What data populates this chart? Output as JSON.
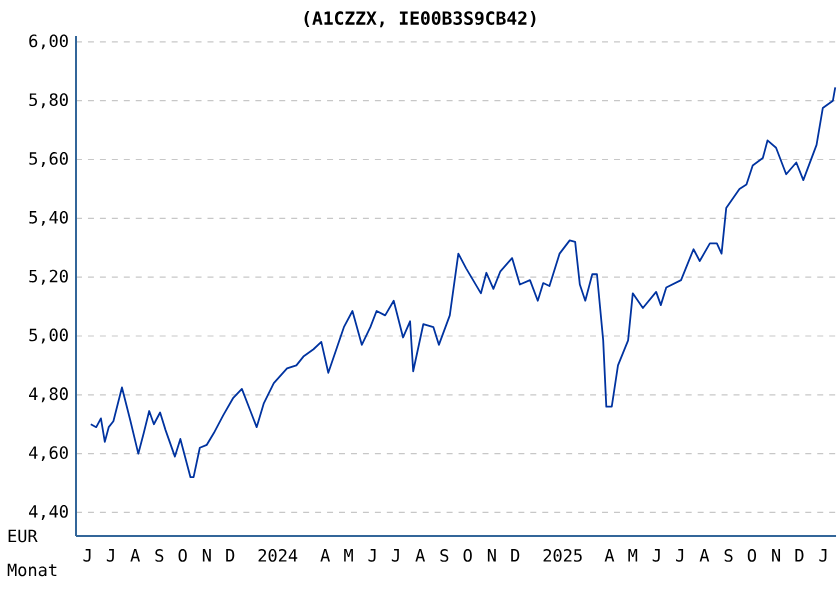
{
  "chart_data": {
    "type": "line",
    "title": "(A1CZZX, IE00B3S9CB42)",
    "xlabel": "Monat",
    "ylabel": "EUR",
    "x": [
      "2023-06-20",
      "2023-06-27",
      "2023-07-03",
      "2023-07-08",
      "2023-07-13",
      "2023-07-19",
      "2023-07-30",
      "2023-08-10",
      "2023-08-20",
      "2023-08-27",
      "2023-09-03",
      "2023-09-09",
      "2023-09-17",
      "2023-09-24",
      "2023-10-06",
      "2023-10-13",
      "2023-10-26",
      "2023-10-30",
      "2023-11-07",
      "2023-11-16",
      "2023-11-25",
      "2023-12-07",
      "2023-12-20",
      "2023-12-31",
      "2024-01-11",
      "2024-01-19",
      "2024-01-28",
      "2024-02-10",
      "2024-02-27",
      "2024-03-10",
      "2024-03-19",
      "2024-04-01",
      "2024-04-11",
      "2024-04-20",
      "2024-05-01",
      "2024-05-10",
      "2024-05-21",
      "2024-06-02",
      "2024-06-13",
      "2024-06-21",
      "2024-07-02",
      "2024-07-13",
      "2024-07-25",
      "2024-08-03",
      "2024-08-07",
      "2024-08-20",
      "2024-09-02",
      "2024-09-09",
      "2024-09-23",
      "2024-10-04",
      "2024-10-14",
      "2024-11-02",
      "2024-11-09",
      "2024-11-18",
      "2024-11-27",
      "2024-12-12",
      "2024-12-22",
      "2025-01-04",
      "2025-01-14",
      "2025-01-21",
      "2025-01-29",
      "2025-02-11",
      "2025-02-24",
      "2025-03-03",
      "2025-03-09",
      "2025-03-16",
      "2025-03-25",
      "2025-03-31",
      "2025-04-08",
      "2025-04-12",
      "2025-04-19",
      "2025-04-27",
      "2025-05-10",
      "2025-05-16",
      "2025-05-29",
      "2025-06-15",
      "2025-06-21",
      "2025-06-28",
      "2025-07-17",
      "2025-08-02",
      "2025-08-10",
      "2025-08-23",
      "2025-09-01",
      "2025-09-07",
      "2025-09-13",
      "2025-09-30",
      "2025-10-09",
      "2025-10-17",
      "2025-10-30",
      "2025-11-05",
      "2025-11-16",
      "2025-11-29",
      "2025-12-12",
      "2025-12-21",
      "2026-01-07",
      "2026-01-15",
      "2026-01-28",
      "2026-01-31"
    ],
    "series": [
      {
        "color": "#0033a0",
        "values": [
          4.7,
          4.69,
          4.72,
          4.64,
          4.69,
          4.71,
          4.825,
          4.71,
          4.6,
          4.67,
          4.745,
          4.7,
          4.74,
          4.68,
          4.59,
          4.65,
          4.52,
          4.52,
          4.62,
          4.63,
          4.67,
          4.73,
          4.79,
          4.82,
          4.745,
          4.69,
          4.77,
          4.84,
          4.89,
          4.9,
          4.93,
          4.955,
          4.98,
          4.875,
          4.96,
          5.03,
          5.085,
          4.97,
          5.03,
          5.085,
          5.07,
          5.12,
          4.995,
          5.05,
          4.88,
          5.04,
          5.03,
          4.97,
          5.07,
          5.28,
          5.23,
          5.145,
          5.215,
          5.16,
          5.22,
          5.265,
          5.175,
          5.19,
          5.12,
          5.18,
          5.17,
          5.28,
          5.325,
          5.32,
          5.175,
          5.12,
          5.21,
          5.21,
          4.985,
          4.76,
          4.76,
          4.9,
          4.985,
          5.145,
          5.095,
          5.15,
          5.105,
          5.165,
          5.19,
          5.295,
          5.255,
          5.315,
          5.315,
          5.28,
          5.435,
          5.5,
          5.515,
          5.58,
          5.605,
          5.665,
          5.64,
          5.55,
          5.59,
          5.53,
          5.65,
          5.775,
          5.8,
          5.845
        ]
      }
    ],
    "xlim": [
      "2023-06-01",
      "2026-02-01"
    ],
    "xticks": [
      {
        "value": "2023-06-16",
        "label": "J"
      },
      {
        "value": "2023-07-16",
        "label": "J"
      },
      {
        "value": "2023-08-16",
        "label": "A"
      },
      {
        "value": "2023-09-16",
        "label": "S"
      },
      {
        "value": "2023-10-16",
        "label": "O"
      },
      {
        "value": "2023-11-16",
        "label": "N"
      },
      {
        "value": "2023-12-16",
        "label": "D"
      },
      {
        "value": "2024-02-15",
        "label": "2024"
      },
      {
        "value": "2024-04-16",
        "label": "A"
      },
      {
        "value": "2024-05-16",
        "label": "M"
      },
      {
        "value": "2024-06-16",
        "label": "J"
      },
      {
        "value": "2024-07-16",
        "label": "J"
      },
      {
        "value": "2024-08-16",
        "label": "A"
      },
      {
        "value": "2024-09-16",
        "label": "S"
      },
      {
        "value": "2024-10-16",
        "label": "O"
      },
      {
        "value": "2024-11-16",
        "label": "N"
      },
      {
        "value": "2024-12-16",
        "label": "D"
      },
      {
        "value": "2025-02-15",
        "label": "2025"
      },
      {
        "value": "2025-04-16",
        "label": "A"
      },
      {
        "value": "2025-05-16",
        "label": "M"
      },
      {
        "value": "2025-06-16",
        "label": "J"
      },
      {
        "value": "2025-07-16",
        "label": "J"
      },
      {
        "value": "2025-08-16",
        "label": "A"
      },
      {
        "value": "2025-09-16",
        "label": "S"
      },
      {
        "value": "2025-10-16",
        "label": "O"
      },
      {
        "value": "2025-11-16",
        "label": "N"
      },
      {
        "value": "2025-12-16",
        "label": "D"
      },
      {
        "value": "2026-01-16",
        "label": "J"
      }
    ],
    "ylim": [
      4.32,
      6.02
    ],
    "yticks": [
      {
        "value": 4.4,
        "label": "4,40"
      },
      {
        "value": 4.6,
        "label": "4,60"
      },
      {
        "value": 4.8,
        "label": "4,80"
      },
      {
        "value": 5.0,
        "label": "5,00"
      },
      {
        "value": 5.2,
        "label": "5,20"
      },
      {
        "value": 5.4,
        "label": "5,40"
      },
      {
        "value": 5.6,
        "label": "5,60"
      },
      {
        "value": 5.8,
        "label": "5,80"
      },
      {
        "value": 6.0,
        "label": "6,00"
      }
    ],
    "grid": "y",
    "marker": "none",
    "line_style": "solid"
  }
}
